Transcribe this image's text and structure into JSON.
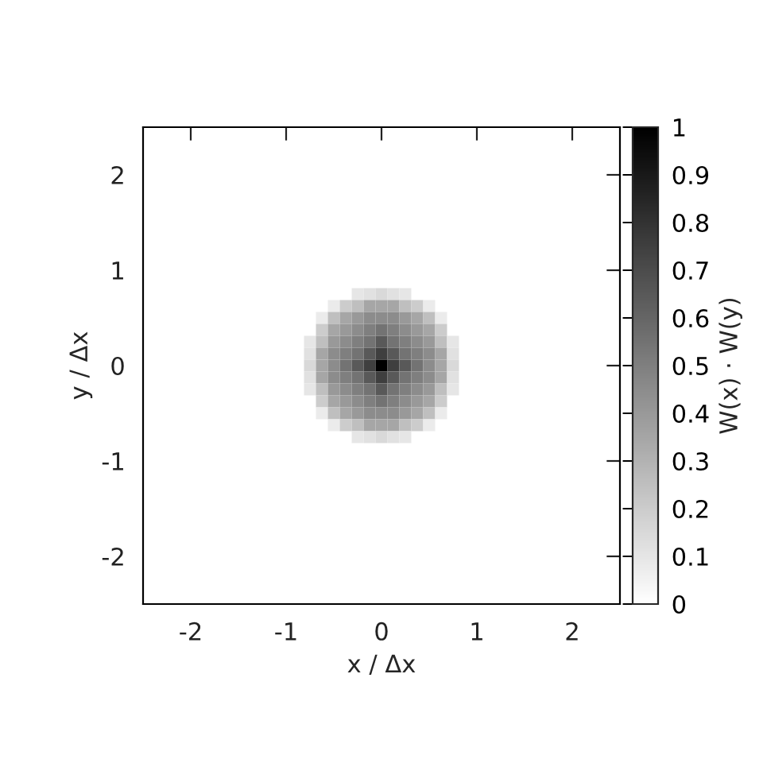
{
  "chart_data": {
    "type": "heatmap",
    "xlabel": "x / Δx",
    "ylabel": "y / Δx",
    "clabel": "W(x) · W(y)",
    "x": [
      -0.75,
      -0.625,
      -0.5,
      -0.375,
      -0.25,
      -0.125,
      0,
      0.125,
      0.25,
      0.375,
      0.5,
      0.625,
      0.75
    ],
    "y": [
      0.75,
      0.625,
      0.5,
      0.375,
      0.25,
      0.125,
      0,
      -0.125,
      -0.25,
      -0.375,
      -0.5,
      -0.625,
      -0.75
    ],
    "cells": [
      [
        null,
        null,
        null,
        null,
        0.1,
        0.12,
        0.15,
        0.12,
        0.1,
        null,
        null,
        null,
        null
      ],
      [
        null,
        null,
        0.08,
        0.2,
        0.25,
        0.35,
        0.35,
        0.35,
        0.25,
        0.2,
        0.08,
        null,
        null
      ],
      [
        null,
        0.08,
        0.25,
        0.35,
        0.4,
        0.45,
        0.45,
        0.45,
        0.4,
        0.35,
        0.25,
        0.08,
        null
      ],
      [
        null,
        0.2,
        0.35,
        0.4,
        0.45,
        0.5,
        0.55,
        0.5,
        0.45,
        0.4,
        0.35,
        0.2,
        null
      ],
      [
        0.1,
        0.25,
        0.4,
        0.45,
        0.5,
        0.55,
        0.65,
        0.55,
        0.5,
        0.45,
        0.4,
        0.25,
        0.1
      ],
      [
        0.12,
        0.35,
        0.45,
        0.5,
        0.55,
        0.65,
        0.75,
        0.65,
        0.55,
        0.5,
        0.45,
        0.35,
        0.12
      ],
      [
        0.15,
        0.35,
        0.45,
        0.55,
        0.65,
        0.75,
        1.0,
        0.75,
        0.65,
        0.55,
        0.45,
        0.35,
        0.15
      ],
      [
        0.12,
        0.35,
        0.45,
        0.5,
        0.55,
        0.65,
        0.75,
        0.65,
        0.55,
        0.5,
        0.45,
        0.35,
        0.12
      ],
      [
        0.1,
        0.25,
        0.4,
        0.45,
        0.5,
        0.55,
        0.65,
        0.55,
        0.5,
        0.45,
        0.4,
        0.25,
        0.1
      ],
      [
        null,
        0.2,
        0.35,
        0.4,
        0.45,
        0.5,
        0.55,
        0.5,
        0.45,
        0.4,
        0.35,
        0.2,
        null
      ],
      [
        null,
        0.08,
        0.25,
        0.35,
        0.4,
        0.45,
        0.45,
        0.45,
        0.4,
        0.35,
        0.25,
        0.08,
        null
      ],
      [
        null,
        null,
        0.08,
        0.2,
        0.25,
        0.35,
        0.35,
        0.35,
        0.25,
        0.2,
        0.08,
        null,
        null
      ],
      [
        null,
        null,
        null,
        null,
        0.1,
        0.12,
        0.15,
        0.12,
        0.1,
        null,
        null,
        null,
        null
      ]
    ],
    "xlim": [
      -2.5,
      2.5
    ],
    "ylim": [
      -2.5,
      2.5
    ],
    "xticks": [
      -2,
      -1,
      0,
      1,
      2
    ],
    "yticks": [
      -2,
      -1,
      0,
      1,
      2
    ],
    "clim": [
      0,
      1
    ],
    "cticks": [
      0,
      0.1,
      0.2,
      0.3,
      0.4,
      0.5,
      0.6,
      0.7,
      0.8,
      0.9,
      1
    ],
    "grid": false
  }
}
